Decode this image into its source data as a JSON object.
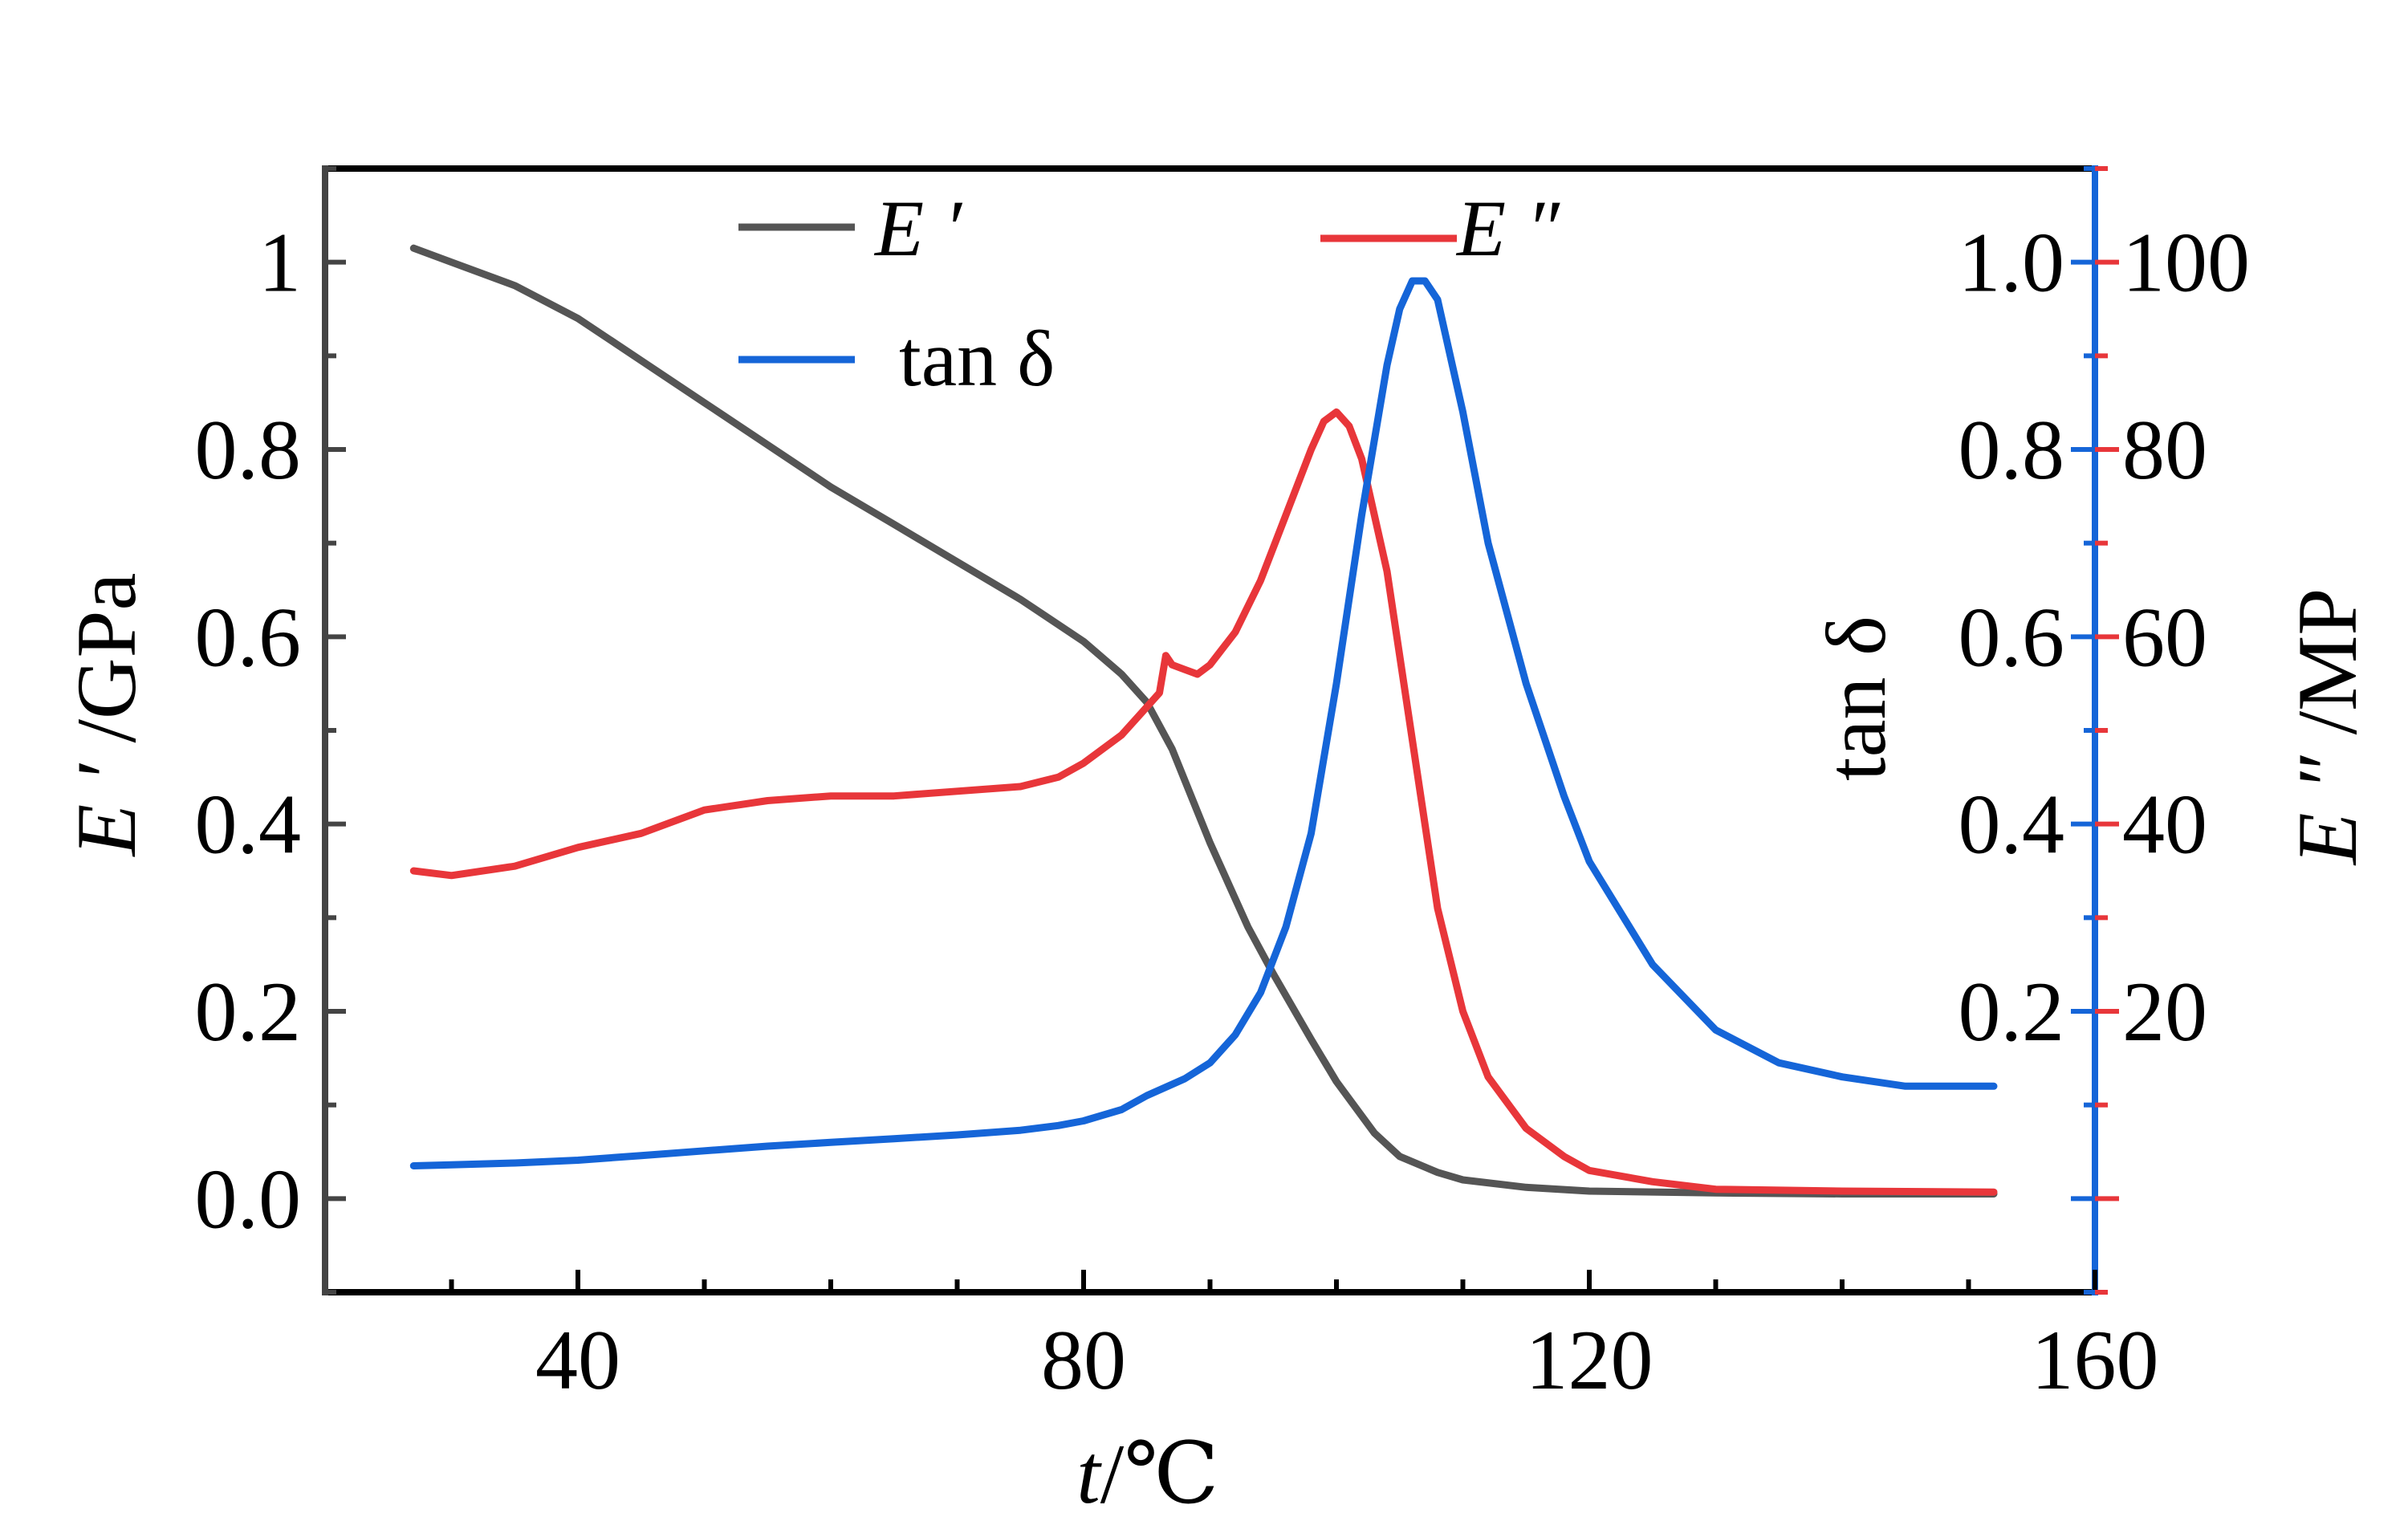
{
  "chart_data": {
    "type": "line",
    "x_axis": {
      "label_italic": "t",
      "label_rest": "/℃",
      "range": [
        20,
        160
      ],
      "major_ticks": [
        40,
        80,
        120,
        160
      ],
      "tick_labels": [
        "40",
        "80",
        "120",
        "160"
      ],
      "minor_step": 10
    },
    "y_left": {
      "label_italic": "E ′",
      "label_rest": " /GPa",
      "range": [
        -0.1,
        1.1
      ],
      "major_ticks": [
        0.0,
        0.2,
        0.4,
        0.6,
        0.8,
        1.0
      ],
      "tick_labels": [
        "0.0",
        "0.2",
        "0.4",
        "0.6",
        "0.8",
        "1"
      ],
      "color": "#444444"
    },
    "y_tan": {
      "label": "tan δ",
      "range": [
        -0.1,
        1.1
      ],
      "major_ticks": [
        0.2,
        0.4,
        0.6,
        0.8,
        1.0
      ],
      "tick_labels": [
        "0.2",
        "0.4",
        "0.6",
        "0.8",
        "1.0"
      ],
      "color": "#1565d8"
    },
    "y_Epp": {
      "label_italic": "E ″",
      "label_rest": " /MP",
      "range": [
        -10,
        110
      ],
      "major_ticks": [
        20,
        40,
        60,
        80,
        100
      ],
      "tick_labels": [
        "20",
        "40",
        "60",
        "80",
        "100"
      ],
      "color": "#e8363a"
    },
    "legend": {
      "placement": "top",
      "entries": [
        {
          "key": "E_prime",
          "label_italic": "E ′",
          "color": "#555555"
        },
        {
          "key": "E_dprime",
          "label_italic": "E ″",
          "color": "#e8363a"
        },
        {
          "key": "tan_delta",
          "label": "tan δ",
          "color": "#1565d8"
        }
      ]
    },
    "series": [
      {
        "key": "E_prime",
        "axis": "y_left",
        "color": "#555555",
        "x": [
          27,
          30,
          35,
          40,
          45,
          50,
          55,
          60,
          65,
          70,
          75,
          80,
          83,
          85,
          87,
          90,
          93,
          95,
          98,
          100,
          103,
          105,
          108,
          110,
          115,
          120,
          130,
          140,
          152
        ],
        "values": [
          1.015,
          1.0,
          0.975,
          0.94,
          0.895,
          0.85,
          0.805,
          0.76,
          0.72,
          0.68,
          0.64,
          0.595,
          0.56,
          0.53,
          0.48,
          0.38,
          0.29,
          0.24,
          0.17,
          0.125,
          0.07,
          0.045,
          0.028,
          0.02,
          0.012,
          0.008,
          0.006,
          0.005,
          0.005
        ]
      },
      {
        "key": "E_dprime",
        "axis": "y_Epp",
        "color": "#e8363a",
        "x": [
          27,
          30,
          35,
          40,
          45,
          50,
          55,
          60,
          65,
          70,
          75,
          78,
          80,
          83,
          85,
          86,
          86.5,
          87,
          88,
          89,
          90,
          92,
          94,
          96,
          98,
          99,
          100,
          101,
          102,
          104,
          106,
          108,
          110,
          112,
          115,
          118,
          120,
          125,
          130,
          140,
          152
        ],
        "values": [
          35,
          34.5,
          35.5,
          37.5,
          39,
          41.5,
          42.5,
          43,
          43,
          43.5,
          44,
          45,
          46.5,
          49.5,
          52.5,
          54,
          58,
          57,
          56.5,
          56,
          57,
          60.5,
          66,
          73,
          80,
          83,
          84,
          82.5,
          79,
          67,
          49,
          31,
          20,
          13,
          7.5,
          4.5,
          3,
          1.8,
          1,
          0.8,
          0.7
        ]
      },
      {
        "key": "tan_delta",
        "axis": "y_tan",
        "color": "#1565d8",
        "x": [
          27,
          30,
          35,
          40,
          45,
          50,
          55,
          60,
          65,
          70,
          75,
          78,
          80,
          83,
          85,
          88,
          90,
          92,
          94,
          96,
          98,
          100,
          102,
          104,
          105,
          106,
          107,
          108,
          110,
          112,
          115,
          118,
          120,
          125,
          130,
          135,
          140,
          145,
          152
        ],
        "values": [
          0.035,
          0.036,
          0.038,
          0.041,
          0.046,
          0.051,
          0.056,
          0.06,
          0.064,
          0.068,
          0.073,
          0.078,
          0.083,
          0.095,
          0.11,
          0.128,
          0.145,
          0.175,
          0.22,
          0.29,
          0.39,
          0.55,
          0.73,
          0.89,
          0.95,
          0.98,
          0.98,
          0.96,
          0.84,
          0.7,
          0.55,
          0.43,
          0.36,
          0.25,
          0.18,
          0.145,
          0.13,
          0.12,
          0.12
        ]
      }
    ]
  }
}
